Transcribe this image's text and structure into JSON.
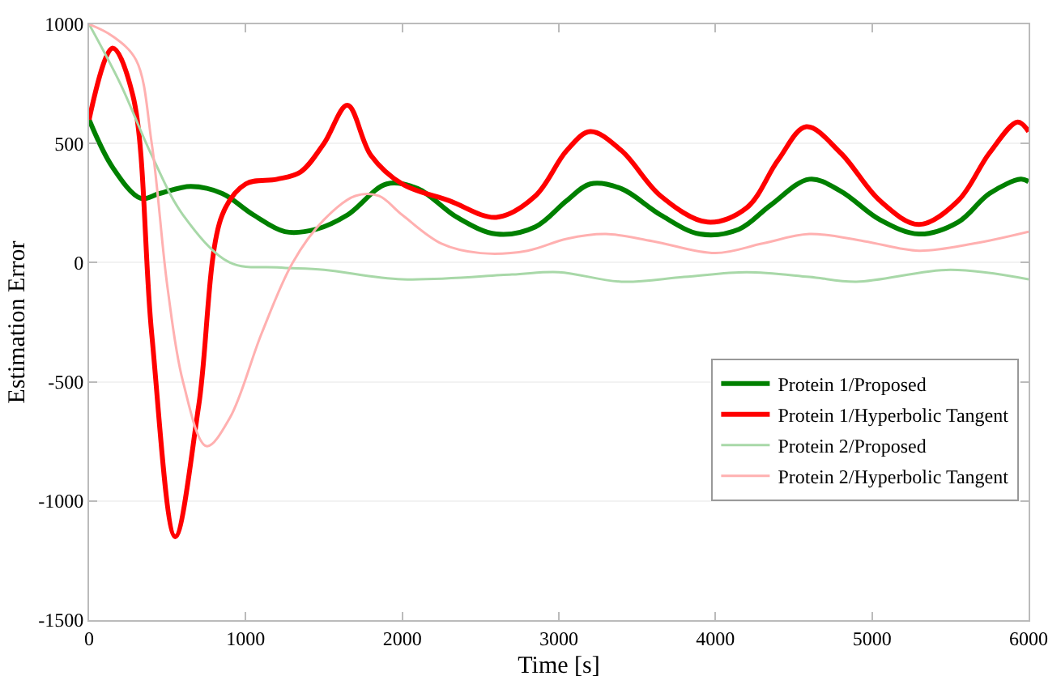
{
  "chart_data": {
    "type": "line",
    "xlabel": "Time [s]",
    "ylabel": "Estimation Error",
    "xlim": [
      0,
      6000
    ],
    "ylim": [
      -1500,
      1000
    ],
    "xticks": [
      0,
      1000,
      2000,
      3000,
      4000,
      5000,
      6000
    ],
    "yticks": [
      -1500,
      -1000,
      -500,
      0,
      500,
      1000
    ],
    "grid": "y",
    "legend": "bottom right",
    "marker": "none",
    "line_style": "solid",
    "series": [
      {
        "name": "Protein 1/Proposed",
        "color": "#008000",
        "x": [
          0,
          150,
          330,
          450,
          650,
          850,
          1050,
          1250,
          1450,
          1650,
          1900,
          2100,
          2350,
          2600,
          2850,
          3050,
          3200,
          3400,
          3650,
          3900,
          4150,
          4350,
          4600,
          4800,
          5050,
          5300,
          5550,
          5750,
          5950,
          6000
        ],
        "values": [
          600,
          400,
          270,
          290,
          320,
          290,
          200,
          130,
          140,
          200,
          330,
          310,
          190,
          120,
          150,
          260,
          330,
          310,
          200,
          120,
          140,
          240,
          350,
          300,
          180,
          120,
          170,
          290,
          350,
          340
        ]
      },
      {
        "name": "Protein 1/Hyperbolic Tangent",
        "color": "#ff0000",
        "x": [
          0,
          150,
          280,
          400,
          550,
          700,
          850,
          1000,
          1200,
          1350,
          1500,
          1650,
          1800,
          2000,
          2300,
          2600,
          2850,
          3050,
          3200,
          3400,
          3650,
          3950,
          4200,
          4400,
          4580,
          4800,
          5050,
          5300,
          5550,
          5750,
          5930,
          6000
        ],
        "values": [
          600,
          900,
          700,
          -300,
          -1150,
          -600,
          200,
          330,
          350,
          380,
          500,
          660,
          450,
          330,
          260,
          190,
          280,
          470,
          550,
          470,
          280,
          170,
          230,
          430,
          570,
          460,
          260,
          160,
          260,
          460,
          590,
          550
        ]
      },
      {
        "name": "Protein 2/Proposed",
        "color": "#a8d8a8",
        "x": [
          0,
          200,
          400,
          600,
          900,
          1200,
          1500,
          2000,
          2700,
          3000,
          3400,
          3800,
          4200,
          4600,
          4900,
          5500,
          6000
        ],
        "values": [
          1000,
          750,
          450,
          200,
          0,
          -20,
          -30,
          -70,
          -50,
          -40,
          -80,
          -60,
          -40,
          -60,
          -80,
          -30,
          -70
        ]
      },
      {
        "name": "Protein 2/Hyperbolic Tangent",
        "color": "#ffb0b0",
        "x": [
          0,
          150,
          300,
          400,
          500,
          600,
          750,
          900,
          1100,
          1300,
          1500,
          1700,
          1850,
          2000,
          2250,
          2500,
          2800,
          3050,
          3300,
          3600,
          4000,
          4300,
          4600,
          4950,
          5300,
          5650,
          6000
        ],
        "values": [
          1000,
          950,
          850,
          500,
          -100,
          -500,
          -770,
          -650,
          -300,
          0,
          180,
          280,
          280,
          200,
          80,
          40,
          50,
          100,
          120,
          90,
          40,
          80,
          120,
          90,
          50,
          80,
          130
        ]
      }
    ]
  }
}
